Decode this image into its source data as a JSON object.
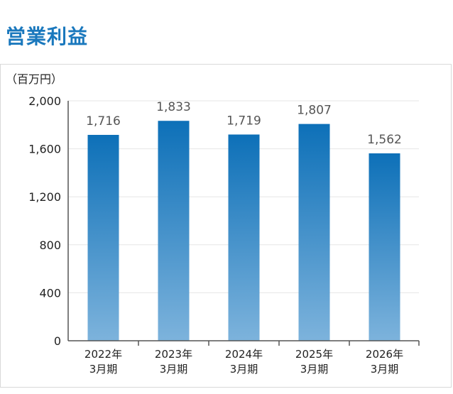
{
  "page": {
    "title": "営業利益"
  },
  "colors": {
    "title": "#1a78bd",
    "bar_top": "#0d70b8",
    "bar_bottom": "#7db3dc",
    "axis": "#555555",
    "grid": "#e6e6e6",
    "label": "#222222",
    "data_label": "#555555"
  },
  "chart_data": {
    "type": "bar",
    "unit_label": "（百万円）",
    "categories": [
      [
        "2022年",
        "3月期"
      ],
      [
        "2023年",
        "3月期"
      ],
      [
        "2024年",
        "3月期"
      ],
      [
        "2025年",
        "3月期"
      ],
      [
        "2026年",
        "3月期"
      ]
    ],
    "values": [
      1716,
      1833,
      1719,
      1807,
      1562
    ],
    "value_labels": [
      "1,716",
      "1,833",
      "1,719",
      "1,807",
      "1,562"
    ],
    "ylim": [
      0,
      2000
    ],
    "yticks": [
      0,
      400,
      800,
      1200,
      1600,
      2000
    ],
    "ytick_labels": [
      "0",
      "400",
      "800",
      "1,200",
      "1,600",
      "2,000"
    ],
    "grid": true,
    "legend": "none"
  }
}
